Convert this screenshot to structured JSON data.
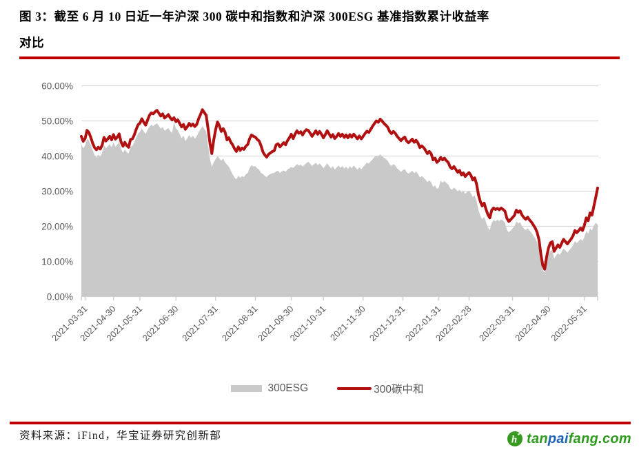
{
  "header": {
    "title_line1": "图 3：截至 6 月 10 日近一年沪深 300 碳中和指数和沪深 300ESG 基准指数累计收益率",
    "title_line2": "对比"
  },
  "accent": {
    "rule_red": "#C00000"
  },
  "legend": {
    "esg_label": "300ESG",
    "carbon_label": "300碳中和"
  },
  "footer": {
    "source": "资料来源：iFind，华宝证券研究创新部",
    "logo": {
      "tan": "tan",
      "pai": "pai",
      "fang": "fang",
      "dotcom": ".com",
      "green": "#2E9B1E",
      "blue": "#1E62B8",
      "icon_green": "#359A1F",
      "icon_glyph": "h"
    }
  },
  "chart_data": {
    "type": "area+line",
    "title": "截至6月10日近一年沪深300碳中和指数和沪深300ESG基准指数累计收益率对比",
    "xlabel": "",
    "ylabel": "",
    "ylim": [
      0,
      60
    ],
    "grid": true,
    "legend_position": "bottom",
    "y_tick_values": [
      0,
      10,
      20,
      30,
      40,
      50,
      60
    ],
    "y_ticks": [
      "0.00%",
      "10.00%",
      "20.00%",
      "30.00%",
      "40.00%",
      "50.00%",
      "60.00%"
    ],
    "x_tick_labels": [
      "2021-03-31",
      "2021-04-30",
      "2021-05-31",
      "2021-06-30",
      "2021-07-31",
      "2021-08-31",
      "2021-09-30",
      "2021-10-31",
      "2021-11-30",
      "2021-12-31",
      "2022-01-31",
      "2022-02-28",
      "2022-03-31",
      "2022-04-30",
      "2022-05-31"
    ],
    "colors": {
      "esg_area": "#C9C9C9",
      "carbon_line": "#B01010",
      "grid": "#D9D9D9",
      "axis": "#D3D3D3",
      "tick_text": "#595959"
    },
    "series": [
      {
        "name": "300ESG",
        "type": "area",
        "color": "#C9C9C9"
      },
      {
        "name": "300碳中和",
        "type": "line",
        "color": "#B01010"
      }
    ],
    "points_format": [
      "date",
      "esg_300",
      "carbon_300"
    ],
    "points": [
      [
        "2021-03-26",
        43.4,
        45.6
      ],
      [
        "2021-03-29",
        42.2,
        44.2
      ],
      [
        "2021-03-31",
        43.0,
        45.0
      ],
      [
        "2021-04-01",
        44.9,
        47.3
      ],
      [
        "2021-04-02",
        44.4,
        46.7
      ],
      [
        "2021-04-06",
        43.2,
        45.3
      ],
      [
        "2021-04-08",
        41.6,
        43.6
      ],
      [
        "2021-04-12",
        40.3,
        42.4
      ],
      [
        "2021-04-13",
        39.6,
        41.8
      ],
      [
        "2021-04-14",
        40.4,
        42.5
      ],
      [
        "2021-04-15",
        39.8,
        42.0
      ],
      [
        "2021-04-16",
        40.9,
        43.1
      ],
      [
        "2021-04-19",
        43.1,
        45.3
      ],
      [
        "2021-04-21",
        42.2,
        44.3
      ],
      [
        "2021-04-23",
        42.8,
        44.9
      ],
      [
        "2021-04-26",
        43.4,
        45.6
      ],
      [
        "2021-04-28",
        42.5,
        44.6
      ],
      [
        "2021-04-30",
        43.9,
        46.1
      ],
      [
        "2021-05-06",
        42.7,
        44.8
      ],
      [
        "2021-05-07",
        43.2,
        45.4
      ],
      [
        "2021-05-10",
        44.1,
        46.3
      ],
      [
        "2021-05-11",
        42.0,
        44.0
      ],
      [
        "2021-05-13",
        40.9,
        42.8
      ],
      [
        "2021-05-14",
        41.9,
        43.9
      ],
      [
        "2021-05-17",
        41.1,
        43.0
      ],
      [
        "2021-05-18",
        40.7,
        42.5
      ],
      [
        "2021-05-20",
        42.7,
        44.7
      ],
      [
        "2021-05-24",
        42.9,
        44.9
      ],
      [
        "2021-05-25",
        43.9,
        46.0
      ],
      [
        "2021-05-27",
        45.3,
        47.6
      ],
      [
        "2021-05-28",
        46.4,
        48.9
      ],
      [
        "2021-05-31",
        46.9,
        49.4
      ],
      [
        "2021-06-01",
        47.9,
        50.6
      ],
      [
        "2021-06-02",
        47.0,
        49.6
      ],
      [
        "2021-06-03",
        46.3,
        48.8
      ],
      [
        "2021-06-07",
        47.4,
        50.2
      ],
      [
        "2021-06-08",
        48.4,
        51.6
      ],
      [
        "2021-06-09",
        48.9,
        52.3
      ],
      [
        "2021-06-10",
        48.5,
        52.0
      ],
      [
        "2021-06-11",
        49.0,
        52.6
      ],
      [
        "2021-06-15",
        49.3,
        53.0
      ],
      [
        "2021-06-16",
        48.6,
        52.2
      ],
      [
        "2021-06-17",
        47.8,
        51.4
      ],
      [
        "2021-06-18",
        48.3,
        52.0
      ],
      [
        "2021-06-21",
        47.2,
        50.8
      ],
      [
        "2021-06-22",
        47.6,
        51.3
      ],
      [
        "2021-06-24",
        48.0,
        51.8
      ],
      [
        "2021-06-25",
        47.1,
        50.9
      ],
      [
        "2021-06-28",
        46.6,
        50.3
      ],
      [
        "2021-06-29",
        49.6,
        50.9
      ],
      [
        "2021-06-30",
        47.9,
        49.8
      ],
      [
        "2021-07-01",
        47.3,
        50.3
      ],
      [
        "2021-07-02",
        46.2,
        49.3
      ],
      [
        "2021-07-05",
        45.1,
        48.3
      ],
      [
        "2021-07-06",
        45.8,
        49.0
      ],
      [
        "2021-07-08",
        44.3,
        47.6
      ],
      [
        "2021-07-09",
        45.0,
        48.3
      ],
      [
        "2021-07-12",
        46.0,
        49.3
      ],
      [
        "2021-07-13",
        45.2,
        48.6
      ],
      [
        "2021-07-14",
        45.8,
        49.1
      ],
      [
        "2021-07-15",
        45.0,
        48.4
      ],
      [
        "2021-07-16",
        45.6,
        49.0
      ],
      [
        "2021-07-19",
        46.8,
        50.6
      ],
      [
        "2021-07-20",
        47.6,
        51.8
      ],
      [
        "2021-07-21",
        48.5,
        53.2
      ],
      [
        "2021-07-22",
        47.7,
        52.4
      ],
      [
        "2021-07-23",
        46.9,
        51.6
      ],
      [
        "2021-07-26",
        43.2,
        47.9
      ],
      [
        "2021-07-27",
        39.2,
        43.6
      ],
      [
        "2021-07-28",
        36.8,
        40.7
      ],
      [
        "2021-07-29",
        38.3,
        44.6
      ],
      [
        "2021-07-30",
        39.1,
        47.5
      ],
      [
        "2021-08-02",
        40.0,
        49.7
      ],
      [
        "2021-08-03",
        39.3,
        48.6
      ],
      [
        "2021-08-04",
        38.7,
        47.0
      ],
      [
        "2021-08-05",
        39.3,
        47.8
      ],
      [
        "2021-08-06",
        38.2,
        46.8
      ],
      [
        "2021-08-09",
        37.6,
        44.6
      ],
      [
        "2021-08-10",
        37.0,
        45.2
      ],
      [
        "2021-08-11",
        35.9,
        44.0
      ],
      [
        "2021-08-12",
        34.8,
        43.2
      ],
      [
        "2021-08-13",
        33.9,
        42.1
      ],
      [
        "2021-08-16",
        33.4,
        41.3
      ],
      [
        "2021-08-17",
        34.4,
        42.6
      ],
      [
        "2021-08-18",
        33.8,
        41.6
      ],
      [
        "2021-08-20",
        34.3,
        42.3
      ],
      [
        "2021-08-23",
        34.0,
        41.9
      ],
      [
        "2021-08-24",
        34.8,
        42.8
      ],
      [
        "2021-08-25",
        35.2,
        43.3
      ],
      [
        "2021-08-26",
        36.6,
        45.0
      ],
      [
        "2021-08-27",
        37.4,
        46.0
      ],
      [
        "2021-08-30",
        37.0,
        45.6
      ],
      [
        "2021-08-31",
        37.1,
        45.4
      ],
      [
        "2021-09-01",
        36.5,
        44.7
      ],
      [
        "2021-09-02",
        36.1,
        44.3
      ],
      [
        "2021-09-03",
        35.2,
        43.0
      ],
      [
        "2021-09-06",
        34.9,
        41.2
      ],
      [
        "2021-09-07",
        34.4,
        40.3
      ],
      [
        "2021-09-08",
        34.0,
        39.7
      ],
      [
        "2021-09-09",
        34.6,
        40.5
      ],
      [
        "2021-09-10",
        34.9,
        40.9
      ],
      [
        "2021-09-13",
        35.1,
        41.3
      ],
      [
        "2021-09-14",
        35.2,
        41.5
      ],
      [
        "2021-09-16",
        35.6,
        43.2
      ],
      [
        "2021-09-17",
        35.8,
        43.5
      ],
      [
        "2021-09-22",
        35.2,
        42.6
      ],
      [
        "2021-09-23",
        35.6,
        43.2
      ],
      [
        "2021-09-24",
        35.9,
        43.8
      ],
      [
        "2021-09-27",
        35.5,
        43.2
      ],
      [
        "2021-09-28",
        36.2,
        44.4
      ],
      [
        "2021-09-29",
        36.5,
        45.2
      ],
      [
        "2021-09-30",
        36.9,
        46.2
      ],
      [
        "2021-10-08",
        36.6,
        45.0
      ],
      [
        "2021-10-11",
        37.1,
        46.2
      ],
      [
        "2021-10-12",
        37.7,
        47.2
      ],
      [
        "2021-10-13",
        37.3,
        46.5
      ],
      [
        "2021-10-14",
        37.6,
        46.9
      ],
      [
        "2021-10-15",
        37.0,
        46.0
      ],
      [
        "2021-10-18",
        37.5,
        46.9
      ],
      [
        "2021-10-19",
        38.0,
        47.5
      ],
      [
        "2021-10-20",
        38.4,
        47.3
      ],
      [
        "2021-10-21",
        37.8,
        46.5
      ],
      [
        "2021-10-22",
        37.2,
        45.6
      ],
      [
        "2021-10-25",
        37.7,
        46.4
      ],
      [
        "2021-10-26",
        38.1,
        47.2
      ],
      [
        "2021-10-27",
        37.4,
        46.2
      ],
      [
        "2021-10-28",
        37.9,
        47.0
      ],
      [
        "2021-10-29",
        37.3,
        46.2
      ],
      [
        "2021-11-01",
        36.5,
        45.2
      ],
      [
        "2021-11-02",
        37.2,
        46.1
      ],
      [
        "2021-11-03",
        37.9,
        47.2
      ],
      [
        "2021-11-04",
        37.2,
        46.3
      ],
      [
        "2021-11-05",
        36.5,
        45.4
      ],
      [
        "2021-11-08",
        37.1,
        46.1
      ],
      [
        "2021-11-09",
        36.2,
        45.0
      ],
      [
        "2021-11-10",
        36.7,
        45.6
      ],
      [
        "2021-11-11",
        37.3,
        46.4
      ],
      [
        "2021-11-12",
        36.6,
        45.6
      ],
      [
        "2021-11-15",
        37.2,
        46.2
      ],
      [
        "2021-11-16",
        36.4,
        45.3
      ],
      [
        "2021-11-17",
        37.0,
        46.0
      ],
      [
        "2021-11-18",
        36.3,
        45.2
      ],
      [
        "2021-11-19",
        37.1,
        46.1
      ],
      [
        "2021-11-22",
        36.5,
        45.4
      ],
      [
        "2021-11-23",
        37.3,
        46.2
      ],
      [
        "2021-11-24",
        36.7,
        45.6
      ],
      [
        "2021-11-25",
        36.1,
        44.9
      ],
      [
        "2021-11-26",
        36.8,
        45.7
      ],
      [
        "2021-11-29",
        36.2,
        44.9
      ],
      [
        "2021-11-30",
        36.9,
        45.6
      ],
      [
        "2021-12-01",
        37.5,
        46.4
      ],
      [
        "2021-12-02",
        38.1,
        47.1
      ],
      [
        "2021-12-03",
        37.9,
        46.7
      ],
      [
        "2021-12-06",
        38.5,
        47.6
      ],
      [
        "2021-12-07",
        39.1,
        48.5
      ],
      [
        "2021-12-08",
        39.7,
        49.3
      ],
      [
        "2021-12-09",
        40.1,
        50.0
      ],
      [
        "2021-12-10",
        39.9,
        49.6
      ],
      [
        "2021-12-13",
        40.5,
        50.5
      ],
      [
        "2021-12-14",
        40.0,
        50.0
      ],
      [
        "2021-12-15",
        39.5,
        49.3
      ],
      [
        "2021-12-16",
        39.2,
        48.8
      ],
      [
        "2021-12-17",
        38.6,
        48.2
      ],
      [
        "2021-12-20",
        37.7,
        47.0
      ],
      [
        "2021-12-21",
        37.2,
        46.4
      ],
      [
        "2021-12-22",
        37.7,
        47.0
      ],
      [
        "2021-12-23",
        37.3,
        46.5
      ],
      [
        "2021-12-27",
        36.5,
        45.6
      ],
      [
        "2021-12-28",
        36.0,
        45.0
      ],
      [
        "2021-12-29",
        35.5,
        44.4
      ],
      [
        "2021-12-30",
        36.0,
        45.0
      ],
      [
        "2022-01-04",
        36.3,
        45.4
      ],
      [
        "2022-01-05",
        35.4,
        44.3
      ],
      [
        "2022-01-06",
        35.0,
        43.8
      ],
      [
        "2022-01-07",
        35.4,
        44.3
      ],
      [
        "2022-01-10",
        35.8,
        44.8
      ],
      [
        "2022-01-11",
        35.1,
        43.9
      ],
      [
        "2022-01-12",
        35.6,
        44.5
      ],
      [
        "2022-01-13",
        34.9,
        43.7
      ],
      [
        "2022-01-14",
        33.9,
        42.4
      ],
      [
        "2022-01-17",
        34.3,
        42.9
      ],
      [
        "2022-01-18",
        33.9,
        42.4
      ],
      [
        "2022-01-19",
        33.3,
        41.6
      ],
      [
        "2022-01-20",
        32.6,
        40.7
      ],
      [
        "2022-01-21",
        33.1,
        41.3
      ],
      [
        "2022-01-24",
        32.5,
        40.6
      ],
      [
        "2022-01-25",
        31.2,
        38.9
      ],
      [
        "2022-01-26",
        31.6,
        39.4
      ],
      [
        "2022-01-27",
        30.6,
        38.2
      ],
      [
        "2022-01-28",
        31.0,
        38.7
      ],
      [
        "2022-02-07",
        33.0,
        39.6
      ],
      [
        "2022-02-08",
        32.4,
        38.9
      ],
      [
        "2022-02-09",
        32.9,
        39.4
      ],
      [
        "2022-02-10",
        32.3,
        38.7
      ],
      [
        "2022-02-11",
        31.9,
        38.2
      ],
      [
        "2022-02-14",
        30.8,
        36.9
      ],
      [
        "2022-02-15",
        30.4,
        36.4
      ],
      [
        "2022-02-16",
        31.0,
        37.0
      ],
      [
        "2022-02-17",
        30.6,
        36.2
      ],
      [
        "2022-02-18",
        29.9,
        35.4
      ],
      [
        "2022-02-21",
        30.4,
        35.9
      ],
      [
        "2022-02-22",
        29.6,
        34.6
      ],
      [
        "2022-02-23",
        30.1,
        35.2
      ],
      [
        "2022-02-24",
        29.3,
        34.2
      ],
      [
        "2022-02-25",
        29.8,
        34.8
      ],
      [
        "2022-02-28",
        30.2,
        35.3
      ],
      [
        "2022-03-01",
        29.4,
        34.5
      ],
      [
        "2022-03-02",
        28.3,
        33.2
      ],
      [
        "2022-03-03",
        28.8,
        33.8
      ],
      [
        "2022-03-04",
        27.2,
        32.0
      ],
      [
        "2022-03-07",
        24.6,
        28.9
      ],
      [
        "2022-03-08",
        23.0,
        27.0
      ],
      [
        "2022-03-09",
        22.0,
        25.8
      ],
      [
        "2022-03-10",
        22.7,
        26.6
      ],
      [
        "2022-03-11",
        21.2,
        24.8
      ],
      [
        "2022-03-14",
        19.6,
        23.3
      ],
      [
        "2022-03-15",
        18.9,
        22.4
      ],
      [
        "2022-03-16",
        21.0,
        24.6
      ],
      [
        "2022-03-17",
        21.8,
        25.2
      ],
      [
        "2022-03-18",
        21.4,
        24.8
      ],
      [
        "2022-03-21",
        21.9,
        25.1
      ],
      [
        "2022-03-22",
        21.5,
        24.7
      ],
      [
        "2022-03-23",
        22.0,
        25.2
      ],
      [
        "2022-03-24",
        21.6,
        24.8
      ],
      [
        "2022-03-25",
        21.0,
        24.3
      ],
      [
        "2022-03-28",
        19.0,
        22.3
      ],
      [
        "2022-03-29",
        18.3,
        21.4
      ],
      [
        "2022-03-30",
        18.8,
        21.9
      ],
      [
        "2022-03-31",
        19.4,
        22.5
      ],
      [
        "2022-04-01",
        20.0,
        23.1
      ],
      [
        "2022-04-06",
        21.4,
        24.6
      ],
      [
        "2022-04-07",
        20.8,
        24.0
      ],
      [
        "2022-04-08",
        21.2,
        24.4
      ],
      [
        "2022-04-11",
        20.0,
        23.2
      ],
      [
        "2022-04-12",
        19.4,
        22.5
      ],
      [
        "2022-04-13",
        18.9,
        22.0
      ],
      [
        "2022-04-14",
        19.5,
        22.6
      ],
      [
        "2022-04-15",
        18.8,
        21.8
      ],
      [
        "2022-04-18",
        18.2,
        21.2
      ],
      [
        "2022-04-19",
        17.4,
        20.4
      ],
      [
        "2022-04-20",
        16.6,
        19.5
      ],
      [
        "2022-04-21",
        15.4,
        18.3
      ],
      [
        "2022-04-22",
        13.6,
        16.2
      ],
      [
        "2022-04-25",
        10.0,
        12.0
      ],
      [
        "2022-04-26",
        7.6,
        8.9
      ],
      [
        "2022-04-27",
        6.8,
        7.8
      ],
      [
        "2022-04-28",
        9.6,
        11.2
      ],
      [
        "2022-04-29",
        11.8,
        13.8
      ],
      [
        "2022-05-05",
        13.0,
        15.3
      ],
      [
        "2022-05-06",
        13.3,
        15.6
      ],
      [
        "2022-05-09",
        10.8,
        12.9
      ],
      [
        "2022-05-10",
        11.6,
        13.8
      ],
      [
        "2022-05-11",
        12.4,
        14.7
      ],
      [
        "2022-05-12",
        11.8,
        14.0
      ],
      [
        "2022-05-13",
        12.8,
        15.2
      ],
      [
        "2022-05-16",
        13.7,
        16.3
      ],
      [
        "2022-05-17",
        13.1,
        15.6
      ],
      [
        "2022-05-18",
        12.5,
        15.0
      ],
      [
        "2022-05-19",
        13.2,
        15.7
      ],
      [
        "2022-05-20",
        13.8,
        16.4
      ],
      [
        "2022-05-23",
        14.6,
        17.3
      ],
      [
        "2022-05-24",
        15.8,
        18.8
      ],
      [
        "2022-05-25",
        15.2,
        18.2
      ],
      [
        "2022-05-26",
        15.8,
        18.8
      ],
      [
        "2022-05-27",
        16.4,
        19.5
      ],
      [
        "2022-05-30",
        15.8,
        18.8
      ],
      [
        "2022-05-31",
        17.0,
        20.3
      ],
      [
        "2022-06-01",
        18.6,
        22.4
      ],
      [
        "2022-06-02",
        17.9,
        21.6
      ],
      [
        "2022-06-06",
        19.4,
        23.8
      ],
      [
        "2022-06-07",
        18.8,
        23.2
      ],
      [
        "2022-06-08",
        20.2,
        25.7
      ],
      [
        "2022-06-09",
        21.0,
        28.3
      ],
      [
        "2022-06-10",
        20.5,
        30.9
      ]
    ]
  }
}
